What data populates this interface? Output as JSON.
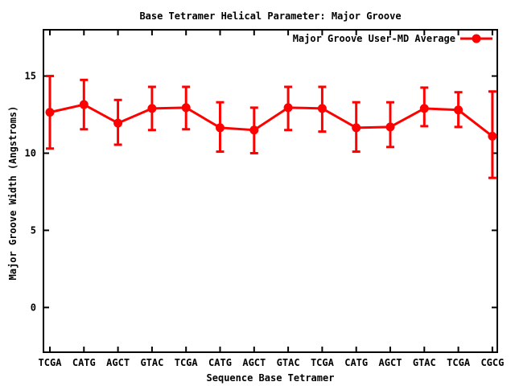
{
  "chart_data": {
    "type": "line",
    "title": "Base Tetramer Helical Parameter: Major Groove",
    "xlabel": "Sequence Base Tetramer",
    "ylabel": "Major Groove Width (Angstroms)",
    "legend": {
      "label": "Major Groove User-MD Average",
      "position": "top-right-inside"
    },
    "categories": [
      "TCGA",
      "CATG",
      "AGCT",
      "GTAC",
      "TCGA",
      "CATG",
      "AGCT",
      "GTAC",
      "TCGA",
      "CATG",
      "AGCT",
      "GTAC",
      "TCGA",
      "CGCG"
    ],
    "series": [
      {
        "name": "Major Groove User-MD Average",
        "values": [
          12.65,
          13.15,
          11.95,
          12.9,
          12.95,
          11.65,
          11.5,
          12.95,
          12.9,
          11.65,
          11.7,
          12.9,
          12.8,
          11.1
        ],
        "err_low": [
          10.3,
          11.55,
          10.55,
          11.5,
          11.55,
          10.1,
          10.0,
          11.5,
          11.4,
          10.1,
          10.4,
          11.75,
          11.7,
          8.4
        ],
        "err_high": [
          15.0,
          14.75,
          13.45,
          14.3,
          14.3,
          13.3,
          12.95,
          14.3,
          14.3,
          13.3,
          13.3,
          14.25,
          13.95,
          14.0
        ]
      }
    ],
    "yticks": [
      0,
      5,
      10,
      15
    ],
    "ylim": [
      -2.9,
      18.0
    ],
    "grid": false,
    "marker": "filled-circle",
    "error_bars": "y",
    "colors": {
      "series": "#ff0000",
      "axis": "#000000",
      "background": "#ffffff",
      "text": "#000000"
    }
  }
}
